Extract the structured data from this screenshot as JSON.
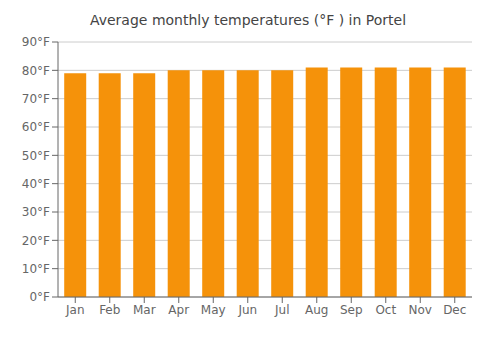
{
  "chart_data": {
    "type": "bar",
    "title": "Average monthly temperatures (°F ) in Portel",
    "categories": [
      "Jan",
      "Feb",
      "Mar",
      "Apr",
      "May",
      "Jun",
      "Jul",
      "Aug",
      "Sep",
      "Oct",
      "Nov",
      "Dec"
    ],
    "values": [
      79,
      79,
      79,
      80,
      80,
      80,
      80,
      81,
      81,
      81,
      81,
      81
    ],
    "color": "#F5920A",
    "ylim": [
      0,
      90
    ],
    "yticks": [
      {
        "value": 0,
        "label": "0°F"
      },
      {
        "value": 10,
        "label": "10°F"
      },
      {
        "value": 20,
        "label": "20°F"
      },
      {
        "value": 30,
        "label": "30°F"
      },
      {
        "value": 40,
        "label": "40°F"
      },
      {
        "value": 50,
        "label": "50°F"
      },
      {
        "value": 60,
        "label": "60°F"
      },
      {
        "value": 70,
        "label": "70°F"
      },
      {
        "value": 80,
        "label": "80°F"
      },
      {
        "value": 90,
        "label": "90°F"
      }
    ],
    "grid": true
  }
}
